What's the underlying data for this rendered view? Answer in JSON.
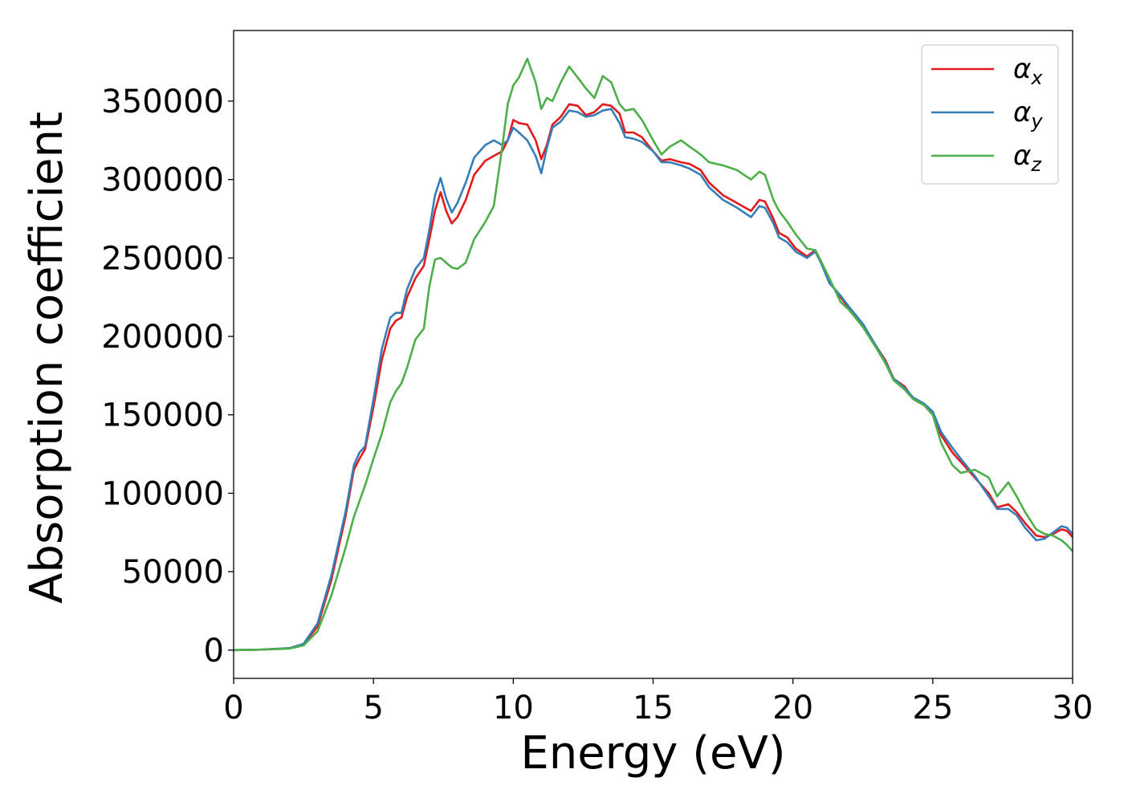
{
  "chart_data": {
    "type": "line",
    "xlabel": "Energy (eV)",
    "ylabel": "Absorption coefficient",
    "xlim": [
      0,
      30
    ],
    "ylim": [
      -18000,
      395000
    ],
    "xticks": [
      0,
      5,
      10,
      15,
      20,
      25,
      30
    ],
    "yticks": [
      0,
      50000,
      100000,
      150000,
      200000,
      250000,
      300000,
      350000
    ],
    "grid": false,
    "legend_position": "top-right",
    "series": [
      {
        "name": "α_x",
        "symbol": "α",
        "subscript": "x",
        "color": "#e41a1c",
        "points": [
          [
            0,
            0
          ],
          [
            1,
            300
          ],
          [
            2,
            1200
          ],
          [
            2.5,
            3500
          ],
          [
            3,
            15000
          ],
          [
            3.5,
            45000
          ],
          [
            4,
            85000
          ],
          [
            4.3,
            115000
          ],
          [
            4.5,
            122000
          ],
          [
            4.7,
            128000
          ],
          [
            5,
            155000
          ],
          [
            5.3,
            185000
          ],
          [
            5.6,
            205000
          ],
          [
            5.8,
            210000
          ],
          [
            6,
            212000
          ],
          [
            6.2,
            225000
          ],
          [
            6.5,
            237000
          ],
          [
            6.8,
            245000
          ],
          [
            7,
            262000
          ],
          [
            7.2,
            280000
          ],
          [
            7.4,
            292000
          ],
          [
            7.6,
            280000
          ],
          [
            7.8,
            272000
          ],
          [
            8,
            276000
          ],
          [
            8.3,
            287000
          ],
          [
            8.6,
            303000
          ],
          [
            9,
            312000
          ],
          [
            9.3,
            315000
          ],
          [
            9.6,
            318000
          ],
          [
            9.8,
            325000
          ],
          [
            10,
            338000
          ],
          [
            10.2,
            336000
          ],
          [
            10.5,
            335000
          ],
          [
            10.8,
            325000
          ],
          [
            11,
            313000
          ],
          [
            11.2,
            322000
          ],
          [
            11.4,
            335000
          ],
          [
            11.7,
            340000
          ],
          [
            12,
            348000
          ],
          [
            12.3,
            347000
          ],
          [
            12.6,
            341000
          ],
          [
            12.9,
            343000
          ],
          [
            13.2,
            348000
          ],
          [
            13.5,
            347000
          ],
          [
            13.8,
            342000
          ],
          [
            14,
            330000
          ],
          [
            14.3,
            330000
          ],
          [
            14.6,
            327000
          ],
          [
            15,
            318000
          ],
          [
            15.3,
            312000
          ],
          [
            15.6,
            313000
          ],
          [
            16,
            311000
          ],
          [
            16.3,
            310000
          ],
          [
            16.7,
            306000
          ],
          [
            17,
            298000
          ],
          [
            17.5,
            290000
          ],
          [
            18,
            285000
          ],
          [
            18.5,
            280000
          ],
          [
            18.8,
            287000
          ],
          [
            19,
            286000
          ],
          [
            19.3,
            275000
          ],
          [
            19.5,
            266000
          ],
          [
            19.8,
            263000
          ],
          [
            20.1,
            256000
          ],
          [
            20.5,
            251000
          ],
          [
            20.8,
            255000
          ],
          [
            21,
            248000
          ],
          [
            21.3,
            235000
          ],
          [
            21.7,
            225000
          ],
          [
            22,
            218000
          ],
          [
            22.5,
            207000
          ],
          [
            23,
            193000
          ],
          [
            23.3,
            185000
          ],
          [
            23.6,
            173000
          ],
          [
            24,
            168000
          ],
          [
            24.3,
            160000
          ],
          [
            24.7,
            156000
          ],
          [
            25,
            150000
          ],
          [
            25.3,
            137000
          ],
          [
            25.7,
            126000
          ],
          [
            26,
            120000
          ],
          [
            26.5,
            110000
          ],
          [
            27,
            100000
          ],
          [
            27.3,
            91000
          ],
          [
            27.7,
            93000
          ],
          [
            28,
            88000
          ],
          [
            28.3,
            81000
          ],
          [
            28.7,
            73000
          ],
          [
            29,
            72000
          ],
          [
            29.3,
            74000
          ],
          [
            29.6,
            77000
          ],
          [
            29.8,
            76000
          ],
          [
            30,
            72000
          ]
        ]
      },
      {
        "name": "α_y",
        "symbol": "α",
        "subscript": "y",
        "color": "#377eb8",
        "points": [
          [
            0,
            0
          ],
          [
            1,
            300
          ],
          [
            2,
            1300
          ],
          [
            2.5,
            4000
          ],
          [
            3,
            17000
          ],
          [
            3.5,
            48000
          ],
          [
            4,
            88000
          ],
          [
            4.3,
            118000
          ],
          [
            4.5,
            126000
          ],
          [
            4.7,
            130000
          ],
          [
            5,
            160000
          ],
          [
            5.3,
            192000
          ],
          [
            5.6,
            212000
          ],
          [
            5.8,
            215000
          ],
          [
            6,
            215000
          ],
          [
            6.2,
            230000
          ],
          [
            6.5,
            243000
          ],
          [
            6.8,
            250000
          ],
          [
            7,
            268000
          ],
          [
            7.2,
            290000
          ],
          [
            7.4,
            301000
          ],
          [
            7.6,
            288000
          ],
          [
            7.8,
            279000
          ],
          [
            8,
            285000
          ],
          [
            8.3,
            298000
          ],
          [
            8.6,
            314000
          ],
          [
            9,
            322000
          ],
          [
            9.3,
            325000
          ],
          [
            9.6,
            322000
          ],
          [
            9.8,
            325000
          ],
          [
            10,
            333000
          ],
          [
            10.2,
            330000
          ],
          [
            10.5,
            325000
          ],
          [
            10.8,
            315000
          ],
          [
            11,
            304000
          ],
          [
            11.2,
            320000
          ],
          [
            11.4,
            333000
          ],
          [
            11.7,
            337000
          ],
          [
            12,
            344000
          ],
          [
            12.3,
            343000
          ],
          [
            12.6,
            340000
          ],
          [
            12.9,
            341000
          ],
          [
            13.2,
            344000
          ],
          [
            13.5,
            345000
          ],
          [
            13.8,
            336000
          ],
          [
            14,
            327000
          ],
          [
            14.3,
            326000
          ],
          [
            14.6,
            324000
          ],
          [
            15,
            318000
          ],
          [
            15.3,
            311000
          ],
          [
            15.6,
            311000
          ],
          [
            16,
            309000
          ],
          [
            16.3,
            307000
          ],
          [
            16.7,
            303000
          ],
          [
            17,
            295000
          ],
          [
            17.5,
            287000
          ],
          [
            18,
            282000
          ],
          [
            18.5,
            276000
          ],
          [
            18.8,
            283000
          ],
          [
            19,
            282000
          ],
          [
            19.3,
            272000
          ],
          [
            19.5,
            263000
          ],
          [
            19.8,
            260000
          ],
          [
            20.1,
            254000
          ],
          [
            20.5,
            250000
          ],
          [
            20.8,
            254000
          ],
          [
            21,
            247000
          ],
          [
            21.3,
            234000
          ],
          [
            21.7,
            226000
          ],
          [
            22,
            219000
          ],
          [
            22.5,
            208000
          ],
          [
            23,
            193000
          ],
          [
            23.3,
            184000
          ],
          [
            23.6,
            173000
          ],
          [
            24,
            167000
          ],
          [
            24.3,
            161000
          ],
          [
            24.7,
            157000
          ],
          [
            25,
            152000
          ],
          [
            25.3,
            139000
          ],
          [
            25.7,
            129000
          ],
          [
            26,
            122000
          ],
          [
            26.5,
            111000
          ],
          [
            27,
            98000
          ],
          [
            27.3,
            90000
          ],
          [
            27.7,
            90000
          ],
          [
            28,
            86000
          ],
          [
            28.3,
            78000
          ],
          [
            28.7,
            70000
          ],
          [
            29,
            71000
          ],
          [
            29.3,
            75000
          ],
          [
            29.6,
            79000
          ],
          [
            29.8,
            78000
          ],
          [
            30,
            74000
          ]
        ]
      },
      {
        "name": "α_z",
        "symbol": "α",
        "subscript": "z",
        "color": "#4daf4a",
        "points": [
          [
            0,
            0
          ],
          [
            1,
            300
          ],
          [
            2,
            1000
          ],
          [
            2.5,
            3000
          ],
          [
            3,
            12000
          ],
          [
            3.5,
            35000
          ],
          [
            4,
            65000
          ],
          [
            4.3,
            85000
          ],
          [
            4.5,
            95000
          ],
          [
            4.7,
            105000
          ],
          [
            5,
            122000
          ],
          [
            5.3,
            138000
          ],
          [
            5.6,
            158000
          ],
          [
            5.8,
            165000
          ],
          [
            6,
            170000
          ],
          [
            6.2,
            180000
          ],
          [
            6.5,
            198000
          ],
          [
            6.8,
            205000
          ],
          [
            7,
            232000
          ],
          [
            7.2,
            249000
          ],
          [
            7.4,
            250000
          ],
          [
            7.6,
            247000
          ],
          [
            7.8,
            244000
          ],
          [
            8,
            243000
          ],
          [
            8.3,
            247000
          ],
          [
            8.6,
            262000
          ],
          [
            9,
            273000
          ],
          [
            9.3,
            283000
          ],
          [
            9.6,
            320000
          ],
          [
            9.8,
            348000
          ],
          [
            10,
            360000
          ],
          [
            10.2,
            365000
          ],
          [
            10.5,
            377000
          ],
          [
            10.8,
            362000
          ],
          [
            11,
            345000
          ],
          [
            11.2,
            352000
          ],
          [
            11.4,
            350000
          ],
          [
            11.7,
            362000
          ],
          [
            12,
            372000
          ],
          [
            12.3,
            365000
          ],
          [
            12.6,
            358000
          ],
          [
            12.9,
            352000
          ],
          [
            13.2,
            366000
          ],
          [
            13.5,
            362000
          ],
          [
            13.8,
            348000
          ],
          [
            14,
            344000
          ],
          [
            14.3,
            345000
          ],
          [
            14.6,
            338000
          ],
          [
            15,
            325000
          ],
          [
            15.3,
            316000
          ],
          [
            15.6,
            321000
          ],
          [
            16,
            325000
          ],
          [
            16.3,
            321000
          ],
          [
            16.7,
            316000
          ],
          [
            17,
            311000
          ],
          [
            17.5,
            309000
          ],
          [
            18,
            306000
          ],
          [
            18.5,
            300000
          ],
          [
            18.8,
            305000
          ],
          [
            19,
            303000
          ],
          [
            19.3,
            287000
          ],
          [
            19.5,
            280000
          ],
          [
            19.8,
            273000
          ],
          [
            20.1,
            265000
          ],
          [
            20.5,
            256000
          ],
          [
            20.8,
            255000
          ],
          [
            21,
            248000
          ],
          [
            21.3,
            237000
          ],
          [
            21.7,
            222000
          ],
          [
            22,
            217000
          ],
          [
            22.5,
            206000
          ],
          [
            23,
            192000
          ],
          [
            23.3,
            183000
          ],
          [
            23.6,
            172000
          ],
          [
            24,
            166000
          ],
          [
            24.3,
            160000
          ],
          [
            24.7,
            156000
          ],
          [
            25,
            150000
          ],
          [
            25.3,
            132000
          ],
          [
            25.7,
            118000
          ],
          [
            26,
            113000
          ],
          [
            26.5,
            115000
          ],
          [
            27,
            110000
          ],
          [
            27.3,
            98000
          ],
          [
            27.7,
            107000
          ],
          [
            28,
            98000
          ],
          [
            28.3,
            88000
          ],
          [
            28.7,
            77000
          ],
          [
            29,
            74000
          ],
          [
            29.3,
            73000
          ],
          [
            29.6,
            70000
          ],
          [
            29.8,
            67000
          ],
          [
            30,
            63000
          ]
        ]
      }
    ]
  }
}
